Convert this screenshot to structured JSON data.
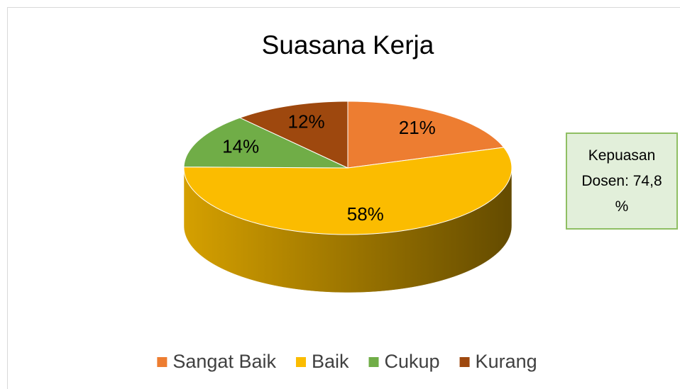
{
  "chart_data": {
    "type": "pie",
    "title": "Suasana Kerja",
    "categories": [
      "Sangat Baik",
      "Baik",
      "Cukup",
      "Kurang"
    ],
    "values": [
      21,
      58,
      14,
      12
    ],
    "value_labels": [
      "21%",
      "58%",
      "14%",
      "12%"
    ],
    "colors": [
      "#ed7d31",
      "#fbbc00",
      "#70ad47",
      "#9e480e"
    ],
    "annotation": "Kepuasan Dosen: 74,8 %",
    "legend": "bottom"
  }
}
